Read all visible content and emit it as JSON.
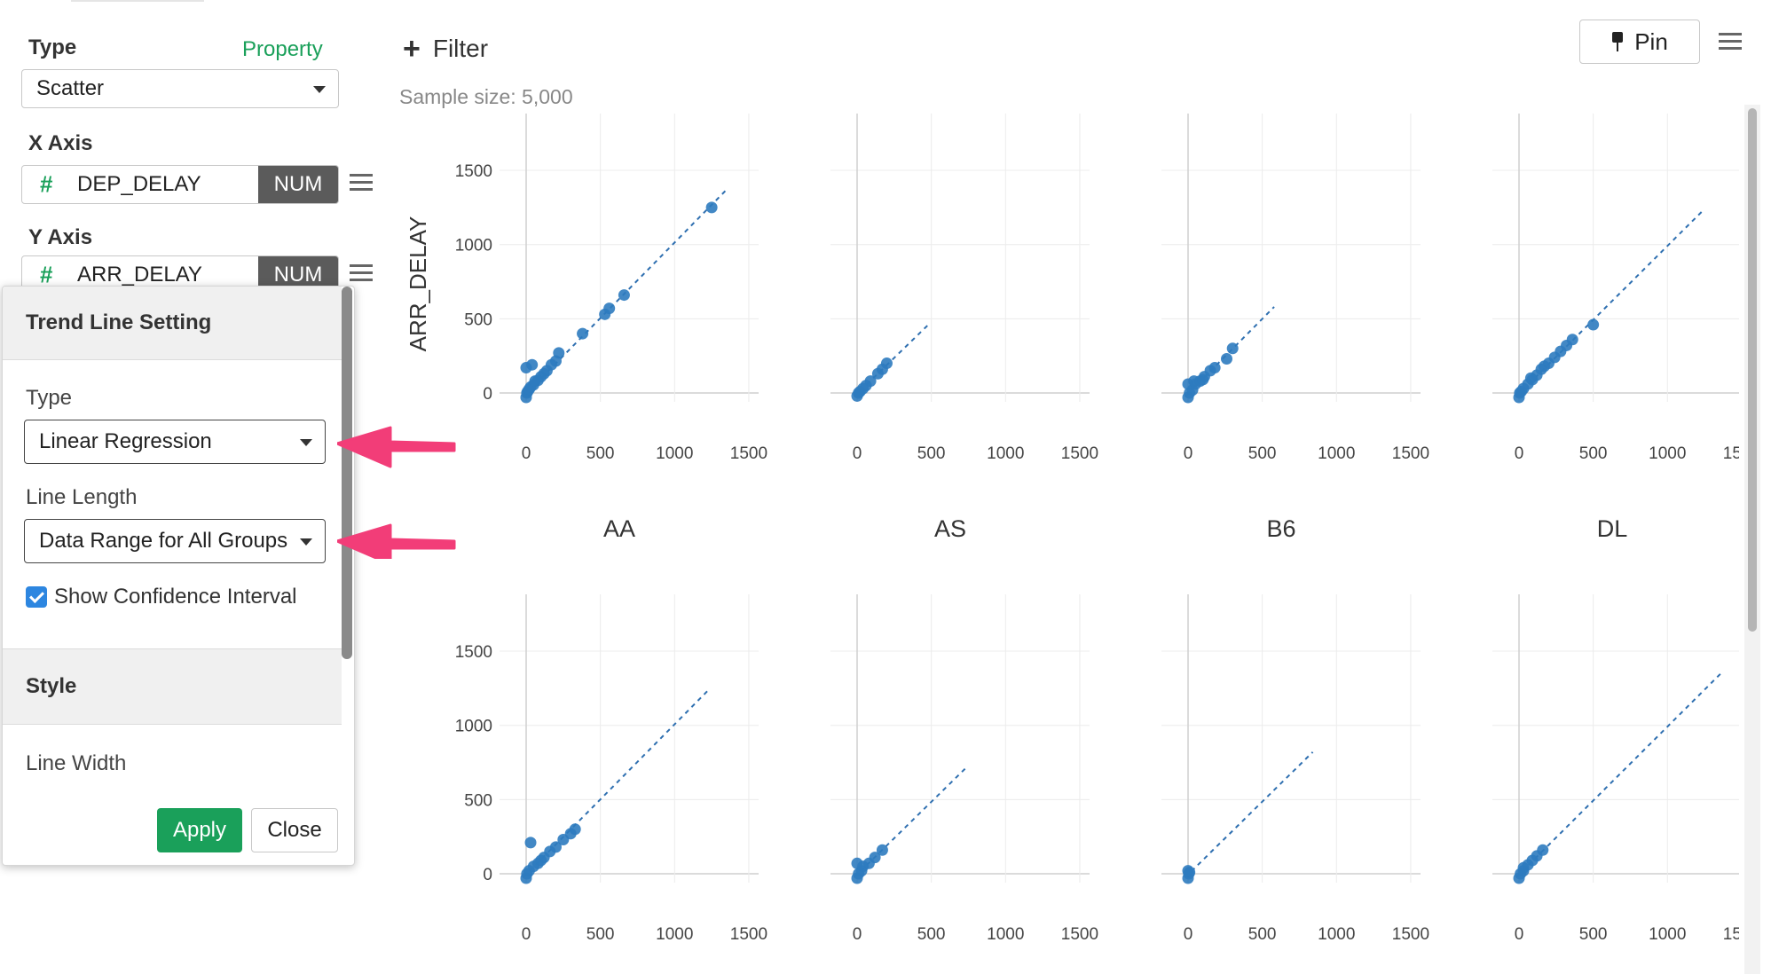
{
  "sidebar": {
    "type_label": "Type",
    "property_link": "Property",
    "chart_type_value": "Scatter",
    "x_axis_label": "X Axis",
    "x_field": {
      "name": "DEP_DELAY",
      "badge": "NUM"
    },
    "y_axis_label": "Y Axis",
    "y_field": {
      "name": "ARR_DELAY",
      "badge": "NUM"
    }
  },
  "popover": {
    "title": "Trend Line Setting",
    "type_label": "Type",
    "type_value": "Linear Regression",
    "line_length_label": "Line Length",
    "line_length_value": "Data Range for All Groups",
    "confidence_label": "Show Confidence Interval",
    "confidence_checked": true,
    "style_title": "Style",
    "line_width_label": "Line Width",
    "apply_label": "Apply",
    "close_label": "Close"
  },
  "header": {
    "filter_label": "Filter",
    "sample_size": "Sample size: 5,000",
    "pin_label": "Pin"
  },
  "colors": {
    "accent_green": "#1aa05a",
    "point_blue": "#2e7bbf",
    "arrow_pink": "#f23d78"
  },
  "chart_data": {
    "type": "scatter",
    "facet_by": [
      "AA",
      "AS",
      "B6",
      "DL"
    ],
    "ylabel": "ARR_DELAY",
    "x_ticks": [
      "0",
      "500",
      "1000",
      "1500"
    ],
    "y_ticks": [
      "0",
      "500",
      "1000",
      "1500"
    ],
    "xlim": [
      -30,
      1500
    ],
    "ylim": [
      -30,
      1500
    ],
    "facets": [
      {
        "label": "AA",
        "trend": [
          [
            -20,
            -25
          ],
          [
            1350,
            1370
          ]
        ],
        "points": [
          [
            0,
            -30
          ],
          [
            5,
            0
          ],
          [
            10,
            10
          ],
          [
            20,
            25
          ],
          [
            30,
            40
          ],
          [
            50,
            55
          ],
          [
            80,
            85
          ],
          [
            100,
            110
          ],
          [
            140,
            150
          ],
          [
            200,
            215
          ],
          [
            0,
            170
          ],
          [
            40,
            190
          ],
          [
            220,
            270
          ],
          [
            380,
            400
          ],
          [
            530,
            530
          ],
          [
            560,
            570
          ],
          [
            660,
            660
          ],
          [
            1250,
            1250
          ],
          [
            60,
            80
          ],
          [
            120,
            130
          ],
          [
            170,
            190
          ]
        ]
      },
      {
        "label": "AS",
        "trend": [
          [
            -20,
            -25
          ],
          [
            480,
            460
          ]
        ],
        "points": [
          [
            0,
            -20
          ],
          [
            10,
            0
          ],
          [
            20,
            10
          ],
          [
            40,
            30
          ],
          [
            60,
            50
          ],
          [
            90,
            80
          ],
          [
            140,
            130
          ],
          [
            170,
            160
          ],
          [
            200,
            200
          ]
        ]
      },
      {
        "label": "B6",
        "trend": [
          [
            -20,
            -25
          ],
          [
            580,
            580
          ]
        ],
        "points": [
          [
            0,
            -30
          ],
          [
            10,
            0
          ],
          [
            30,
            20
          ],
          [
            50,
            60
          ],
          [
            80,
            80
          ],
          [
            110,
            110
          ],
          [
            150,
            150
          ],
          [
            180,
            170
          ],
          [
            0,
            60
          ],
          [
            40,
            80
          ],
          [
            100,
            90
          ],
          [
            260,
            230
          ],
          [
            300,
            300
          ]
        ]
      },
      {
        "label": "DL",
        "trend": [
          [
            -20,
            -25
          ],
          [
            1250,
            1240
          ]
        ],
        "points": [
          [
            0,
            -30
          ],
          [
            5,
            0
          ],
          [
            15,
            10
          ],
          [
            30,
            30
          ],
          [
            60,
            60
          ],
          [
            90,
            90
          ],
          [
            120,
            120
          ],
          [
            150,
            160
          ],
          [
            200,
            200
          ],
          [
            240,
            240
          ],
          [
            280,
            280
          ],
          [
            320,
            320
          ],
          [
            360,
            360
          ],
          [
            500,
            460
          ],
          [
            80,
            100
          ],
          [
            170,
            180
          ]
        ]
      },
      {
        "label": "",
        "trend": [
          [
            -20,
            -25
          ],
          [
            1230,
            1240
          ]
        ],
        "points": [
          [
            0,
            -30
          ],
          [
            5,
            0
          ],
          [
            20,
            20
          ],
          [
            50,
            50
          ],
          [
            80,
            70
          ],
          [
            120,
            110
          ],
          [
            160,
            150
          ],
          [
            200,
            180
          ],
          [
            250,
            230
          ],
          [
            300,
            270
          ],
          [
            330,
            300
          ],
          [
            30,
            210
          ],
          [
            100,
            90
          ]
        ]
      },
      {
        "label": "",
        "trend": [
          [
            -20,
            -25
          ],
          [
            740,
            720
          ]
        ],
        "points": [
          [
            0,
            -30
          ],
          [
            10,
            0
          ],
          [
            30,
            20
          ],
          [
            0,
            70
          ],
          [
            40,
            50
          ],
          [
            80,
            70
          ],
          [
            120,
            110
          ],
          [
            170,
            160
          ]
        ]
      },
      {
        "label": "",
        "trend": [
          [
            -20,
            -25
          ],
          [
            840,
            820
          ]
        ],
        "points": [
          [
            0,
            -30
          ],
          [
            5,
            0
          ],
          [
            10,
            10
          ],
          [
            0,
            20
          ]
        ]
      },
      {
        "label": "",
        "trend": [
          [
            -20,
            -25
          ],
          [
            1370,
            1360
          ]
        ],
        "points": [
          [
            0,
            -30
          ],
          [
            10,
            0
          ],
          [
            30,
            20
          ],
          [
            60,
            60
          ],
          [
            90,
            90
          ],
          [
            120,
            120
          ],
          [
            160,
            160
          ],
          [
            30,
            40
          ]
        ]
      }
    ]
  }
}
